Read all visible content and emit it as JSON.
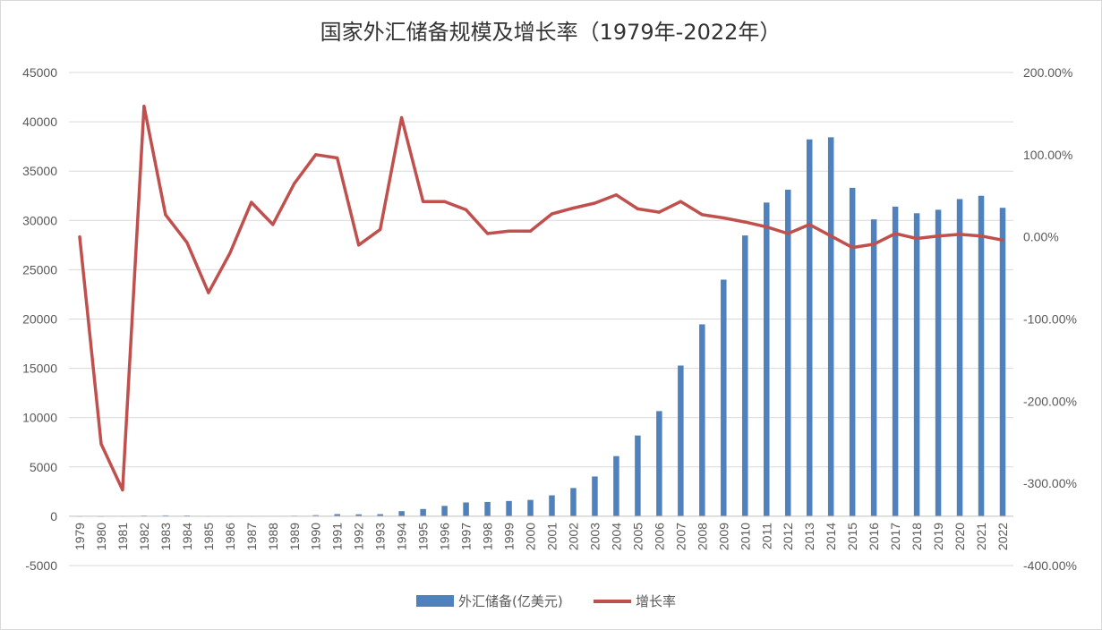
{
  "chart_data": {
    "type": "bar+line",
    "title": "国家外汇储备规模及增长率（1979年-2022年）",
    "categories": [
      "1979",
      "1980",
      "1981",
      "1982",
      "1983",
      "1984",
      "1985",
      "1986",
      "1987",
      "1988",
      "1989",
      "1990",
      "1991",
      "1992",
      "1993",
      "1994",
      "1995",
      "1996",
      "1997",
      "1998",
      "1999",
      "2000",
      "2001",
      "2002",
      "2003",
      "2004",
      "2005",
      "2006",
      "2007",
      "2008",
      "2009",
      "2010",
      "2011",
      "2012",
      "2013",
      "2014",
      "2015",
      "2016",
      "2017",
      "2018",
      "2019",
      "2020",
      "2021",
      "2022"
    ],
    "series": [
      {
        "name": "外汇储备(亿美元)",
        "type": "bar",
        "axis": "left",
        "color": "#4F81BD",
        "values": [
          8,
          -13,
          27,
          70,
          89,
          82,
          26,
          21,
          29,
          34,
          56,
          111,
          217,
          194,
          212,
          516,
          736,
          1050,
          1399,
          1450,
          1547,
          1656,
          2122,
          2864,
          4033,
          6099,
          8189,
          10663,
          15282,
          19460,
          23992,
          28473,
          31811,
          33116,
          38213,
          38430,
          33304,
          30105,
          31399,
          30727,
          31079,
          32165,
          32502,
          31277
        ]
      },
      {
        "name": "增长率",
        "type": "line",
        "axis": "right",
        "color": "#C0504D",
        "values": [
          0.0,
          -252.0,
          -308.0,
          159.0,
          27.0,
          -7.0,
          -68.0,
          -20.0,
          42.0,
          15.0,
          65.0,
          100.0,
          96.0,
          -10.0,
          9.0,
          145.0,
          43.0,
          43.0,
          33.0,
          4.0,
          7.0,
          7.0,
          28.0,
          35.0,
          41.0,
          51.0,
          34.0,
          30.0,
          43.0,
          27.0,
          23.0,
          18.0,
          12.0,
          4.0,
          15.0,
          1.0,
          -13.0,
          -9.0,
          4.0,
          -2.0,
          1.0,
          3.0,
          1.0,
          -4.0
        ]
      }
    ],
    "left_axis": {
      "min": -5000,
      "max": 45000,
      "step": 5000,
      "ticks": [
        "-5000",
        "0",
        "5000",
        "10000",
        "15000",
        "20000",
        "25000",
        "30000",
        "35000",
        "40000",
        "45000"
      ]
    },
    "right_axis": {
      "min": -400,
      "max": 200,
      "step": 100,
      "unit": "%",
      "ticks": [
        "-400.00%",
        "-300.00%",
        "-200.00%",
        "-100.00%",
        "0.00%",
        "100.00%",
        "200.00%"
      ]
    },
    "grid": true,
    "legend": "bottom-center"
  },
  "legend": {
    "bar_label": "外汇储备(亿美元)",
    "line_label": "增长率"
  }
}
